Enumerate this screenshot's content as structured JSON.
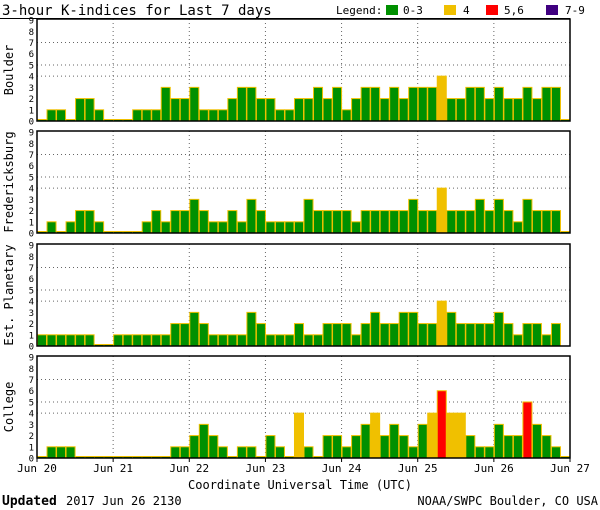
{
  "chart_data": {
    "type": "bar",
    "title": "3-hour K-indices for Last 7 days",
    "legend": {
      "label": "Legend:",
      "placement": "top-right",
      "entries": [
        {
          "label": "0-3",
          "color": "#009000"
        },
        {
          "label": "4",
          "color": "#f0c000"
        },
        {
          "label": "5,6",
          "color": "#ff0000"
        },
        {
          "label": "7-9",
          "color": "#400080"
        }
      ]
    },
    "bar_outline_color": "#f0c000",
    "xlabel": "Coordinate Universal Time (UTC)",
    "x_tick_labels": [
      "Jun 20",
      "Jun 21",
      "Jun 22",
      "Jun 23",
      "Jun 24",
      "Jun 25",
      "Jun 26",
      "Jun 27"
    ],
    "y_tick_labels": [
      "0",
      "1",
      "2",
      "3",
      "4",
      "5",
      "6",
      "7",
      "8",
      "9"
    ],
    "ylim": [
      0,
      9
    ],
    "gridlines_y": [
      4,
      5,
      7
    ],
    "bars_per_day": 8,
    "series": [
      {
        "name": "Boulder",
        "values": [
          0,
          1,
          1,
          0,
          2,
          2,
          1,
          0,
          0,
          0,
          1,
          1,
          1,
          3,
          2,
          2,
          3,
          1,
          1,
          1,
          2,
          3,
          3,
          2,
          2,
          1,
          1,
          2,
          2,
          3,
          2,
          3,
          1,
          2,
          3,
          3,
          2,
          3,
          2,
          3,
          3,
          3,
          4,
          2,
          2,
          3,
          3,
          2,
          3,
          2,
          2,
          3,
          2,
          3,
          3,
          0
        ]
      },
      {
        "name": "Fredericksburg",
        "values": [
          0,
          1,
          0,
          1,
          2,
          2,
          1,
          0,
          0,
          0,
          0,
          1,
          2,
          1,
          2,
          2,
          3,
          2,
          1,
          1,
          2,
          1,
          3,
          2,
          1,
          1,
          1,
          1,
          3,
          2,
          2,
          2,
          2,
          1,
          2,
          2,
          2,
          2,
          2,
          3,
          2,
          2,
          4,
          2,
          2,
          2,
          3,
          2,
          3,
          2,
          1,
          3,
          2,
          2,
          2,
          0
        ]
      },
      {
        "name": "Est. Planetary",
        "values": [
          1,
          1,
          1,
          1,
          1,
          1,
          0,
          0,
          1,
          1,
          1,
          1,
          1,
          1,
          2,
          2,
          3,
          2,
          1,
          1,
          1,
          1,
          3,
          2,
          1,
          1,
          1,
          2,
          1,
          1,
          2,
          2,
          2,
          1,
          2,
          3,
          2,
          2,
          3,
          3,
          2,
          2,
          4,
          3,
          2,
          2,
          2,
          2,
          3,
          2,
          1,
          2,
          2,
          1,
          2,
          null
        ]
      },
      {
        "name": "College",
        "values": [
          0,
          1,
          1,
          1,
          0,
          0,
          0,
          0,
          0,
          0,
          0,
          0,
          0,
          0,
          1,
          1,
          2,
          3,
          2,
          1,
          0,
          1,
          1,
          0,
          2,
          1,
          0,
          4,
          1,
          0,
          2,
          2,
          1,
          2,
          3,
          4,
          2,
          3,
          2,
          1,
          3,
          4,
          6,
          4,
          4,
          2,
          1,
          1,
          3,
          2,
          2,
          5,
          3,
          2,
          1,
          0
        ]
      }
    ]
  },
  "footer": {
    "updated_label": "Updated",
    "updated_value": "2017 Jun 26 2130",
    "source": "NOAA/SWPC Boulder, CO USA"
  }
}
